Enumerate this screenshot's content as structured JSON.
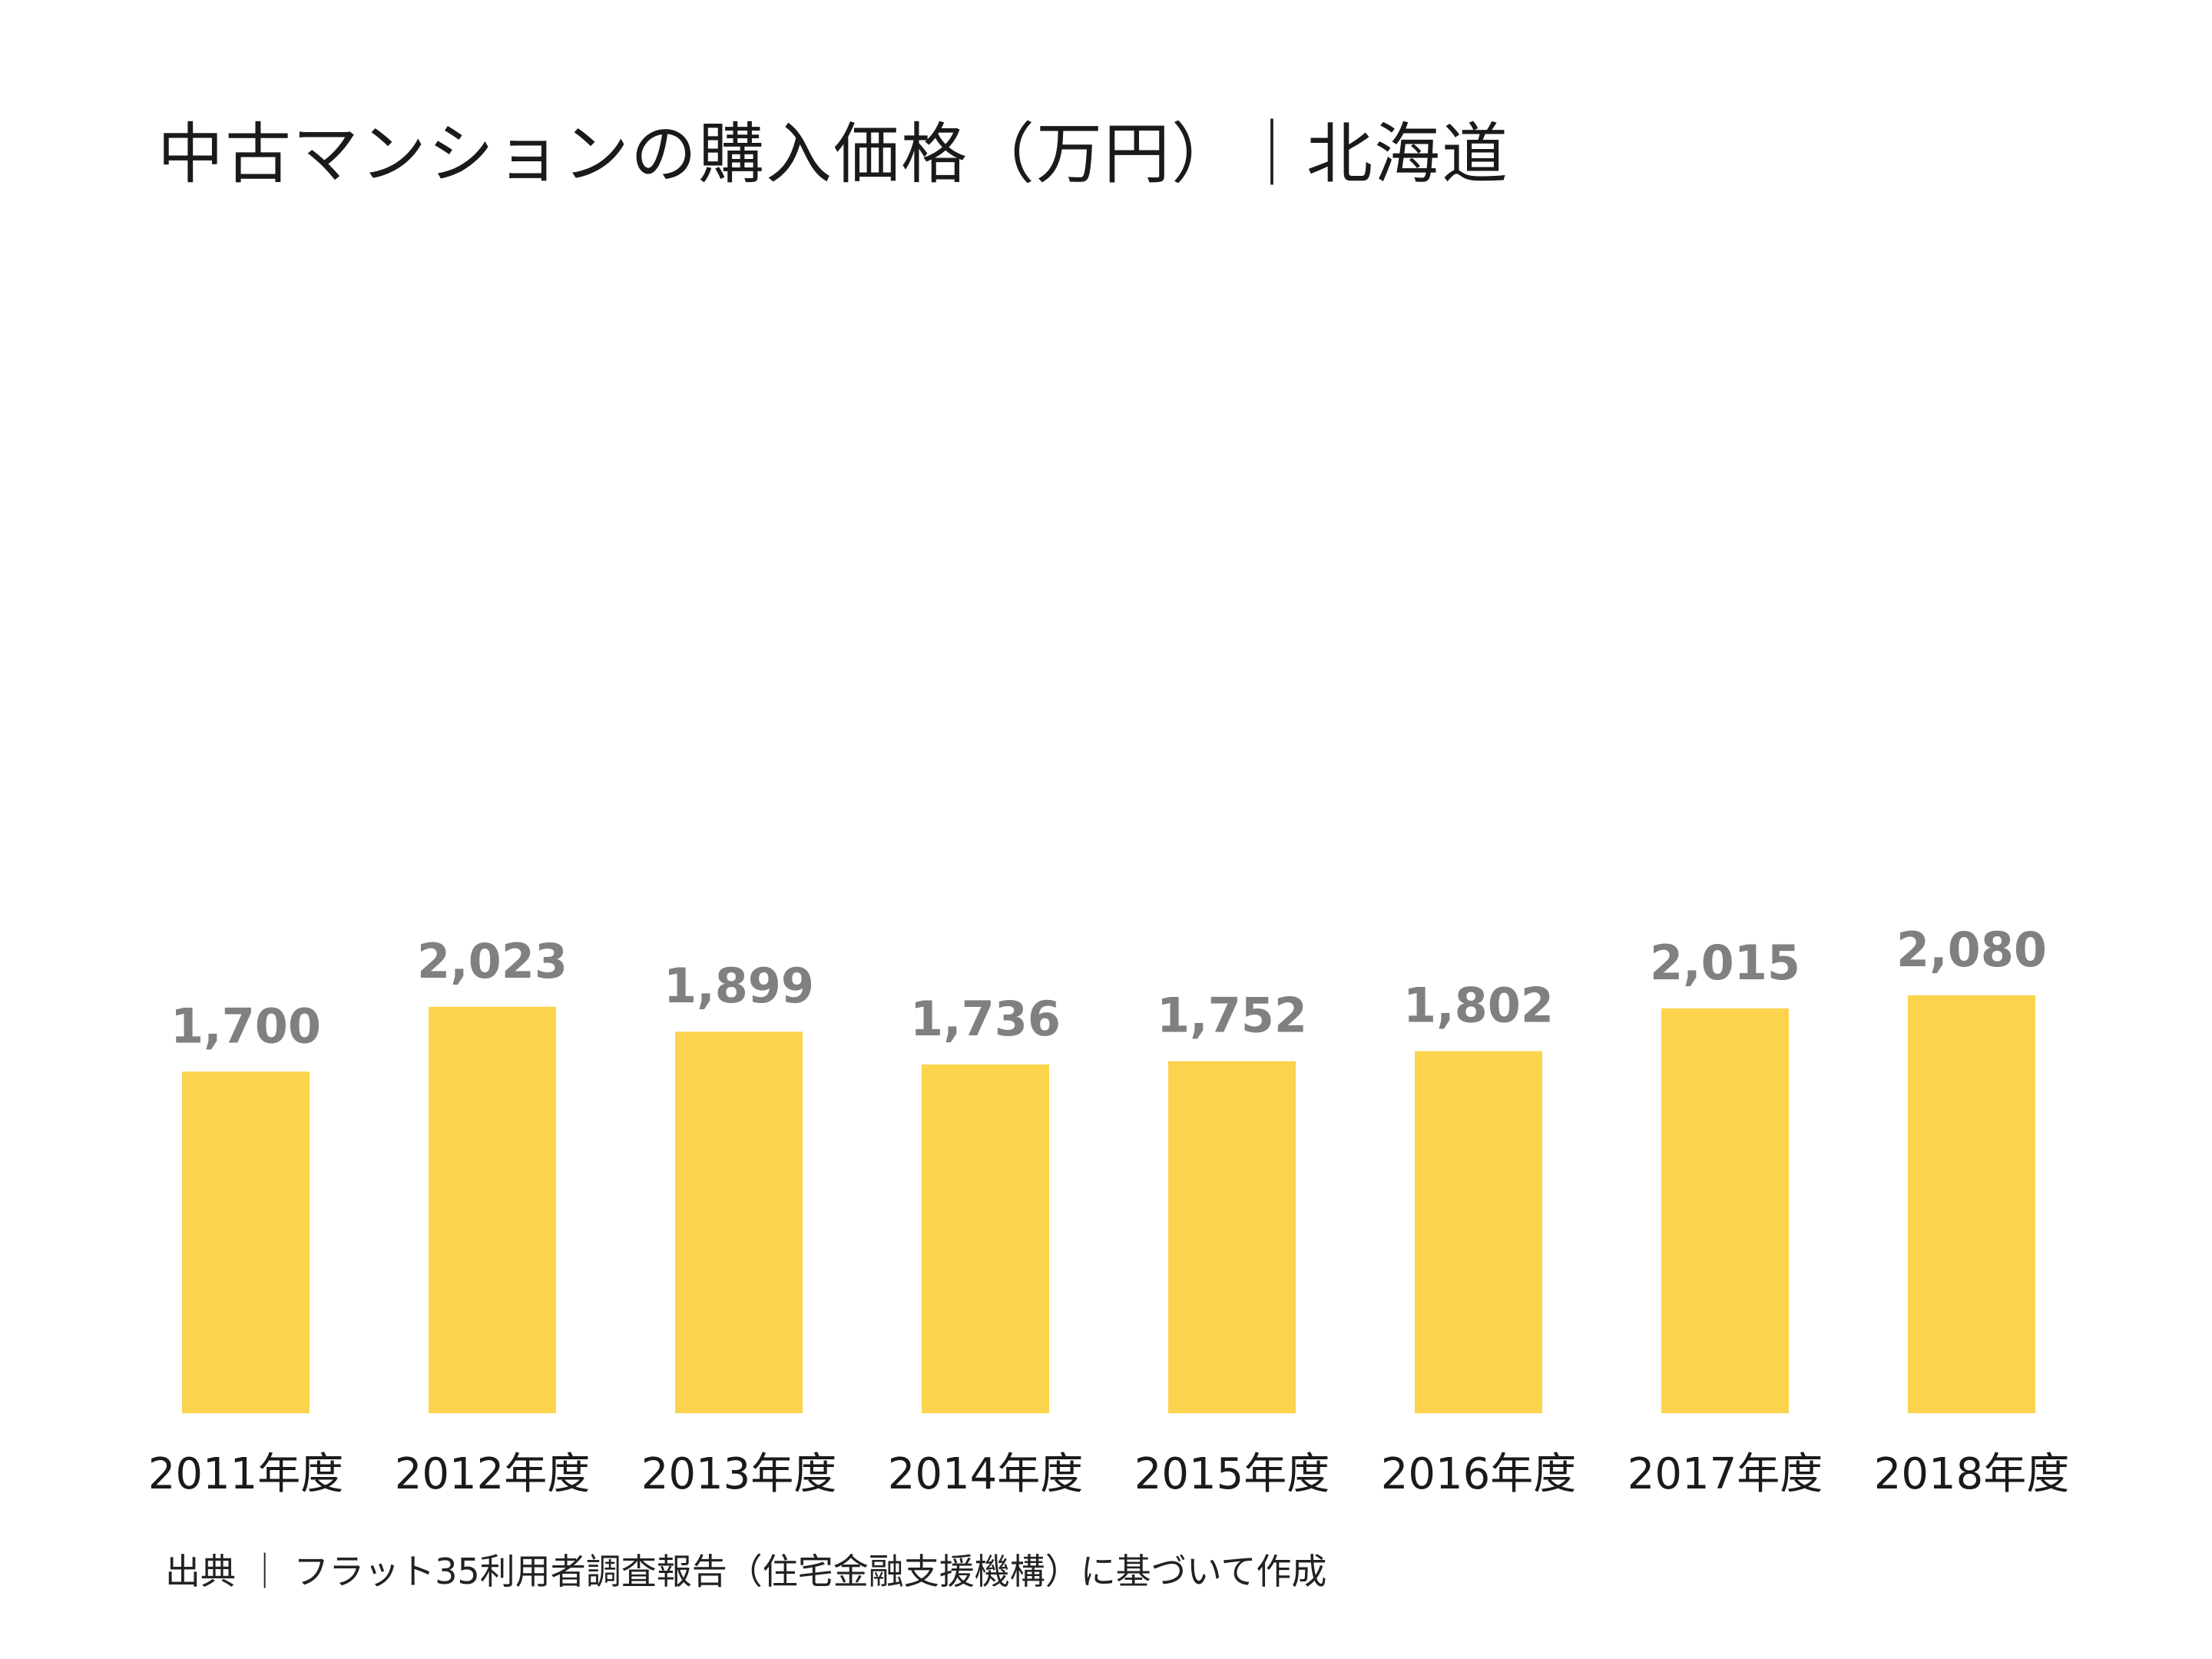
{
  "title": "中古マンションの購入価格（万円）｜北海道",
  "source": "出典 ｜ フラット35利用者調査報告（住宅金融支援機構）に基づいて作成",
  "chart_data": {
    "type": "bar",
    "title": "中古マンションの購入価格（万円）｜北海道",
    "xlabel": "",
    "ylabel": "",
    "categories": [
      "2011年度",
      "2012年度",
      "2013年度",
      "2014年度",
      "2015年度",
      "2016年度",
      "2017年度",
      "2018年度"
    ],
    "values": [
      1700,
      2023,
      1899,
      1736,
      1752,
      1802,
      2015,
      2080
    ],
    "value_labels": [
      "1,700",
      "2,023",
      "1,899",
      "1,736",
      "1,752",
      "1,802",
      "2,015",
      "2,080"
    ],
    "bar_color": "#FCD34D",
    "value_label_color": "#808080",
    "category_label_color": "#1a1a1a",
    "grid": false,
    "legend": "none"
  }
}
